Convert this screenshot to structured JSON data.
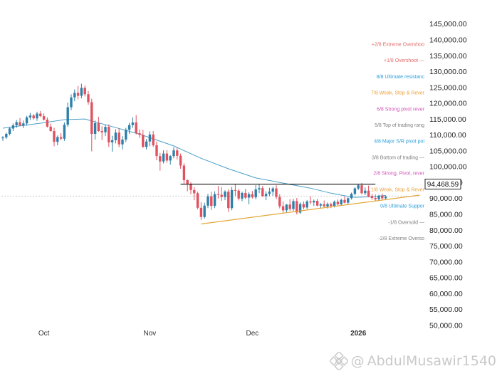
{
  "chart_data": {
    "type": "candlestick",
    "title": "",
    "xlabel": "",
    "ylabel": "",
    "ylim": [
      47000,
      152500
    ],
    "y_ticks": [
      "145,000.00",
      "140,000.00",
      "135,000.00",
      "130,000.00",
      "125,000.00",
      "120,000.00",
      "115,000.00",
      "110,000.00",
      "105,000.00",
      "100,000.00",
      "95,000.00",
      "90,000.00",
      "85,000.00",
      "80,000.00",
      "75,000.00",
      "70,000.00",
      "65,000.00",
      "60,000.00",
      "55,000.00",
      "50,000.00"
    ],
    "x_ticks": [
      {
        "label": "Oct",
        "index": 12,
        "bold": false
      },
      {
        "label": "Nov",
        "index": 43,
        "bold": false
      },
      {
        "label": "Dec",
        "index": 73,
        "bold": false
      },
      {
        "label": "2026",
        "index": 104,
        "bold": true
      }
    ],
    "candles": [
      [
        108900,
        109600,
        108100,
        109200
      ],
      [
        109200,
        110700,
        108700,
        110300
      ],
      [
        110300,
        112500,
        109800,
        112000
      ],
      [
        112000,
        113600,
        111200,
        113000
      ],
      [
        113000,
        114700,
        112200,
        114000
      ],
      [
        114000,
        115300,
        113200,
        112900
      ],
      [
        112900,
        114500,
        112100,
        113600
      ],
      [
        113600,
        116000,
        112900,
        115500
      ],
      [
        115500,
        116900,
        114700,
        116100
      ],
      [
        116100,
        116600,
        114800,
        115200
      ],
      [
        115200,
        117300,
        114400,
        116700
      ],
      [
        116700,
        117500,
        115600,
        115900
      ],
      [
        115900,
        116800,
        114500,
        114800
      ],
      [
        114800,
        115500,
        112300,
        112600
      ],
      [
        112600,
        113500,
        111000,
        111200
      ],
      [
        111200,
        112200,
        106400,
        107800
      ],
      [
        107800,
        109800,
        106700,
        109300
      ],
      [
        109300,
        110500,
        108300,
        108800
      ],
      [
        108800,
        113900,
        108100,
        113200
      ],
      [
        113200,
        120200,
        112500,
        118700
      ],
      [
        118700,
        122800,
        117800,
        121800
      ],
      [
        121800,
        124300,
        120600,
        123200
      ],
      [
        123200,
        125400,
        121200,
        122300
      ],
      [
        122300,
        126100,
        121500,
        124800
      ],
      [
        124800,
        125500,
        122100,
        122800
      ],
      [
        122800,
        123800,
        119500,
        120300
      ],
      [
        120300,
        121400,
        104800,
        110300
      ],
      [
        110300,
        114500,
        108500,
        113700
      ],
      [
        113700,
        115700,
        110900,
        111200
      ],
      [
        111200,
        112700,
        108400,
        110800
      ],
      [
        110800,
        113300,
        109600,
        112500
      ],
      [
        112500,
        113300,
        106200,
        107600
      ],
      [
        107600,
        109700,
        104700,
        108300
      ],
      [
        108300,
        111800,
        107300,
        110700
      ],
      [
        110700,
        112100,
        106100,
        107000
      ],
      [
        107000,
        109600,
        105400,
        108500
      ],
      [
        108500,
        112200,
        107700,
        111600
      ],
      [
        111600,
        113800,
        110300,
        113100
      ],
      [
        113100,
        115500,
        112200,
        113900
      ],
      [
        113900,
        116200,
        110100,
        110500
      ],
      [
        110500,
        111700,
        109000,
        110000
      ],
      [
        110000,
        111600,
        105900,
        106200
      ],
      [
        106200,
        108700,
        105400,
        107900
      ],
      [
        107900,
        111100,
        106400,
        110100
      ],
      [
        110100,
        111200,
        106200,
        106700
      ],
      [
        106700,
        107900,
        102000,
        103300
      ],
      [
        103300,
        104300,
        98700,
        101600
      ],
      [
        101600,
        105100,
        101000,
        104100
      ],
      [
        104100,
        105200,
        101200,
        101900
      ],
      [
        101900,
        103600,
        100600,
        103300
      ],
      [
        103300,
        106100,
        102600,
        105100
      ],
      [
        105100,
        106100,
        102200,
        103400
      ],
      [
        103400,
        104100,
        99300,
        100300
      ],
      [
        100300,
        101000,
        94300,
        95700
      ],
      [
        95700,
        96000,
        92200,
        94400
      ],
      [
        94400,
        95100,
        91300,
        92600
      ],
      [
        92600,
        93500,
        89400,
        91600
      ],
      [
        91600,
        92100,
        86500,
        87000
      ],
      [
        87000,
        88700,
        83200,
        84100
      ],
      [
        84100,
        88600,
        83600,
        87700
      ],
      [
        87700,
        91400,
        86900,
        90600
      ],
      [
        90600,
        92000,
        86300,
        87600
      ],
      [
        87600,
        92200,
        86900,
        91300
      ],
      [
        91300,
        93900,
        89900,
        91100
      ],
      [
        91100,
        93600,
        89200,
        90400
      ],
      [
        90400,
        92500,
        89400,
        92100
      ],
      [
        92100,
        92800,
        85700,
        86900
      ],
      [
        86900,
        93600,
        86200,
        92600
      ],
      [
        92600,
        94400,
        90700,
        92400
      ],
      [
        92400,
        92900,
        89300,
        89900
      ],
      [
        89900,
        92100,
        89100,
        91700
      ],
      [
        91700,
        93000,
        89700,
        90200
      ],
      [
        90200,
        91900,
        88100,
        91300
      ],
      [
        91300,
        92300,
        89900,
        90300
      ],
      [
        90300,
        94100,
        89700,
        92800
      ],
      [
        92800,
        94300,
        91600,
        93200
      ],
      [
        93200,
        93900,
        90400,
        90700
      ],
      [
        90700,
        92200,
        89400,
        91400
      ],
      [
        91400,
        93300,
        90700,
        92100
      ],
      [
        92100,
        93600,
        90800,
        93100
      ],
      [
        93100,
        94100,
        89700,
        90400
      ],
      [
        90400,
        91300,
        86800,
        87500
      ],
      [
        87500,
        89000,
        85500,
        86200
      ],
      [
        86200,
        88200,
        85400,
        88000
      ],
      [
        88000,
        89700,
        86100,
        86600
      ],
      [
        86600,
        89800,
        86000,
        89100
      ],
      [
        89100,
        90100,
        84900,
        85500
      ],
      [
        85500,
        88700,
        85100,
        88200
      ],
      [
        88200,
        89000,
        86500,
        87100
      ],
      [
        87100,
        89400,
        86600,
        89000
      ],
      [
        89000,
        90600,
        88100,
        88700
      ],
      [
        88700,
        89600,
        87600,
        89200
      ],
      [
        89200,
        89800,
        87400,
        87700
      ],
      [
        87700,
        88500,
        86900,
        88100
      ],
      [
        88100,
        89300,
        87300,
        87400
      ],
      [
        87400,
        88700,
        86800,
        88200
      ],
      [
        88200,
        88600,
        86900,
        87600
      ],
      [
        87600,
        89300,
        87100,
        88900
      ],
      [
        88900,
        89600,
        87800,
        88100
      ],
      [
        88100,
        89900,
        87700,
        89500
      ],
      [
        89500,
        90600,
        88400,
        88600
      ],
      [
        88600,
        90300,
        88000,
        90000
      ],
      [
        90000,
        91800,
        89600,
        91400
      ],
      [
        91400,
        93500,
        90900,
        93100
      ],
      [
        93100,
        94500,
        92600,
        94100
      ],
      [
        94100,
        94800,
        91200,
        91600
      ],
      [
        91600,
        93400,
        91000,
        92400
      ],
      [
        92400,
        94000,
        90300,
        90700
      ],
      [
        90700,
        91400,
        89500,
        90100
      ],
      [
        90100,
        91200,
        89100,
        89700
      ],
      [
        89700,
        91100,
        89300,
        90800
      ],
      [
        90800,
        91500,
        89600,
        90000
      ],
      [
        90000,
        90900,
        89400,
        90500
      ]
    ],
    "moving_average": {
      "name": "MA",
      "color": "#4a9fc9",
      "points": [
        [
          0,
          112100
        ],
        [
          12,
          113800
        ],
        [
          18,
          114800
        ],
        [
          24,
          115000
        ],
        [
          32,
          112600
        ],
        [
          40,
          110200
        ],
        [
          50,
          106500
        ],
        [
          58,
          102600
        ],
        [
          66,
          99300
        ],
        [
          74,
          96400
        ],
        [
          82,
          94800
        ],
        [
          90,
          93200
        ],
        [
          96,
          91600
        ],
        [
          100,
          90800
        ],
        [
          103,
          90300
        ],
        [
          108,
          90500
        ],
        [
          112,
          90900
        ]
      ]
    },
    "horizontal_levels": [
      {
        "name": "resistance-line",
        "value": 94468.59,
        "from_index": 52,
        "to_index": 109,
        "color": "#111111"
      },
      {
        "name": "current-price-dotted-line",
        "value": 90700,
        "from_index": -2,
        "to_index": 122,
        "color": "#bbbbbb",
        "dashed": true
      }
    ],
    "trendline": {
      "name": "support-trendline",
      "from": [
        58,
        81900
      ],
      "to": [
        122,
        91000
      ],
      "color": "#e3a73a"
    },
    "price_tag": {
      "value": 94468.59,
      "label": "94,468.59"
    },
    "murrey_levels": [
      {
        "label": "+2/8 Extreme Overshoo",
        "value": 138600,
        "color": "#e36a6a"
      },
      {
        "label": "+1/8 Overshoot —",
        "value": 133500,
        "color": "#e36a6a"
      },
      {
        "label": "8/8 Ultimate resistanc",
        "value": 128400,
        "color": "#2d9fd8"
      },
      {
        "label": "7/8 Weak, Stop & Rever",
        "value": 123300,
        "color": "#e8a23c"
      },
      {
        "label": "6/8 Strong pivot rever",
        "value": 118200,
        "color": "#d154b8"
      },
      {
        "label": "5/8 Top of trading rang",
        "value": 113100,
        "color": "#808080"
      },
      {
        "label": "4/8 Major S/R pivot poi",
        "value": 108100,
        "color": "#2d9fd8"
      },
      {
        "label": "3/8 Bottom of trading —",
        "value": 102900,
        "color": "#808080"
      },
      {
        "label": "2/8 Strong, Pivot, rever",
        "value": 97900,
        "color": "#d154b8"
      },
      {
        "label": "1/8 Weak, Stop & Rever",
        "value": 92800,
        "color": "#e8a23c"
      },
      {
        "label": "0/8 Ultimate Suppor",
        "value": 87600,
        "color": "#2d9fd8"
      },
      {
        "label": "-1/8 Oversold —",
        "value": 82500,
        "color": "#808080"
      },
      {
        "label": "-2/8 Extreme Overso",
        "value": 77400,
        "color": "#808080"
      }
    ],
    "colors": {
      "up": "#2f7fa8",
      "down": "#e0525f",
      "axis_text": "#222222"
    }
  },
  "watermark": {
    "prefix": "@",
    "text": "AbdulMusawir1540"
  }
}
